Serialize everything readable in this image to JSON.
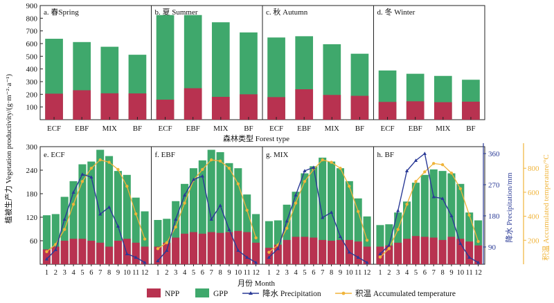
{
  "colors": {
    "npp": "#b83250",
    "gpp": "#3fa86c",
    "precip": "#2a3a96",
    "temp": "#f0b43a",
    "axis": "#222222"
  },
  "labels": {
    "ylabel_top": "植被生产力 Vegetation productivity/(g·m⁻²·a⁻¹)",
    "xlabel_top": "森林类型 Forest type",
    "xlabel_bottom": "月份 Month",
    "y2label": "降水 Precipitation/mm",
    "y3label": "积温 Accumulated temperature/°C"
  },
  "legend": [
    {
      "key": "npp",
      "label": "NPP",
      "kind": "box"
    },
    {
      "key": "gpp",
      "label": "GPP",
      "kind": "box"
    },
    {
      "key": "precip",
      "label": "降水 Precipitation",
      "kind": "line-triangle"
    },
    {
      "key": "temp",
      "label": "积温 Accumulated temperature",
      "kind": "line-circle"
    }
  ],
  "chart_data": [
    {
      "type": "bar",
      "id": "top",
      "categories": [
        "ECF",
        "EBF",
        "MIX",
        "BF"
      ],
      "ylim": [
        0,
        900
      ],
      "yticks": [
        100,
        200,
        300,
        400,
        500,
        600,
        700,
        800,
        900
      ],
      "panels": [
        {
          "label": "a. 春Spring",
          "npp": [
            205,
            232,
            208,
            207
          ],
          "gpp": [
            638,
            612,
            575,
            512
          ]
        },
        {
          "label": "b. 夏 Summer",
          "npp": [
            158,
            248,
            180,
            200
          ],
          "gpp": [
            825,
            825,
            768,
            688
          ]
        },
        {
          "label": "c. 秋 Autumn",
          "npp": [
            178,
            240,
            195,
            188
          ],
          "gpp": [
            648,
            658,
            595,
            520
          ]
        },
        {
          "label": "d. 冬 Winter",
          "npp": [
            140,
            145,
            138,
            142
          ],
          "gpp": [
            388,
            362,
            345,
            315
          ]
        }
      ]
    },
    {
      "type": "bar+line",
      "id": "bottom",
      "x": [
        1,
        2,
        3,
        4,
        5,
        6,
        7,
        8,
        9,
        10,
        11,
        12
      ],
      "xtick_labels": [
        "1",
        "2",
        "3",
        "4",
        "5",
        "6",
        "7",
        "8",
        "9",
        "10",
        "11",
        "12"
      ],
      "ylim": [
        0,
        300
      ],
      "yticks": [
        60,
        120,
        180,
        240,
        300
      ],
      "y2lim": [
        40,
        380
      ],
      "y2ticks": [
        90,
        180,
        270,
        360
      ],
      "y3lim": [
        0,
        980
      ],
      "y3ticks": [
        200,
        400,
        600,
        800
      ],
      "panels": [
        {
          "label": "e. ECF",
          "npp": [
            38,
            45,
            60,
            65,
            65,
            60,
            55,
            45,
            60,
            65,
            55,
            45
          ],
          "gpp": [
            125,
            128,
            172,
            212,
            255,
            262,
            292,
            276,
            238,
            228,
            170,
            135
          ],
          "precip": [
            55,
            82,
            170,
            248,
            300,
            292,
            185,
            205,
            150,
            70,
            60,
            45
          ],
          "temp": [
            105,
            165,
            290,
            500,
            690,
            800,
            870,
            850,
            790,
            650,
            420,
            210
          ]
        },
        {
          "label": "f. EBF",
          "npp": [
            45,
            55,
            68,
            78,
            82,
            78,
            82,
            80,
            82,
            85,
            82,
            55
          ],
          "gpp": [
            113,
            116,
            161,
            205,
            245,
            265,
            292,
            286,
            258,
            245,
            178,
            128
          ],
          "precip": [
            50,
            80,
            170,
            240,
            285,
            295,
            170,
            210,
            140,
            80,
            60,
            45
          ],
          "temp": [
            130,
            180,
            310,
            510,
            700,
            790,
            870,
            860,
            800,
            670,
            450,
            220
          ]
        },
        {
          "label": "g. MIX",
          "npp": [
            42,
            50,
            62,
            70,
            70,
            68,
            62,
            60,
            62,
            62,
            58,
            45
          ],
          "gpp": [
            110,
            112,
            152,
            185,
            232,
            250,
            272,
            262,
            245,
            212,
            168,
            122
          ],
          "precip": [
            60,
            85,
            165,
            240,
            310,
            320,
            175,
            190,
            120,
            75,
            60,
            45
          ],
          "temp": [
            100,
            160,
            300,
            510,
            690,
            790,
            870,
            850,
            800,
            650,
            440,
            200
          ]
        },
        {
          "label": "h. BF",
          "npp": [
            45,
            48,
            55,
            65,
            72,
            70,
            68,
            62,
            70,
            65,
            58,
            48
          ],
          "gpp": [
            100,
            102,
            132,
            160,
            208,
            228,
            242,
            238,
            232,
            205,
            132,
            112
          ],
          "precip": [
            70,
            95,
            195,
            310,
            340,
            360,
            235,
            230,
            180,
            100,
            60,
            45
          ],
          "temp": [
            60,
            130,
            290,
            500,
            690,
            770,
            840,
            830,
            760,
            630,
            410,
            190
          ]
        }
      ]
    }
  ]
}
